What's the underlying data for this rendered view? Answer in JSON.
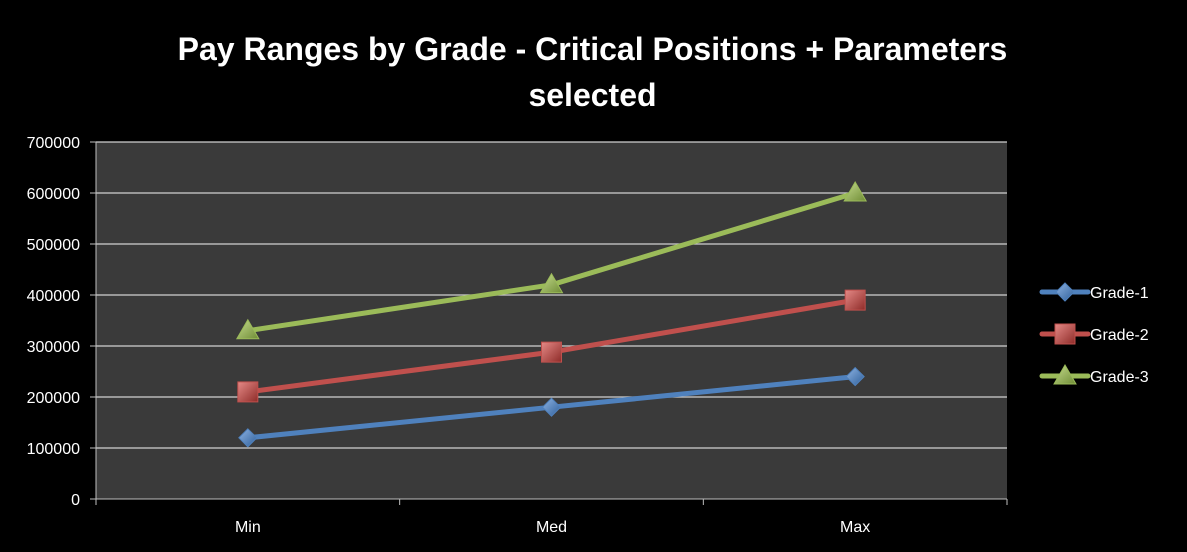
{
  "chart_data": {
    "type": "line",
    "title": "Pay Ranges by Grade - Critical Positions + Parameters selected",
    "xlabel": "",
    "ylabel": "",
    "categories": [
      "Min",
      "Med",
      "Max"
    ],
    "y_ticks": [
      "0",
      "100000",
      "200000",
      "300000",
      "400000",
      "500000",
      "600000",
      "700000"
    ],
    "ylim": [
      0,
      700000
    ],
    "grid": true,
    "legend_position": "right",
    "plot_background": "#3a3a3a",
    "series": [
      {
        "name": "Grade-1",
        "values": [
          120000,
          180000,
          240000
        ],
        "color": "#4f81bd",
        "marker": "diamond"
      },
      {
        "name": "Grade-2",
        "values": [
          210000,
          288000,
          390000
        ],
        "color": "#c0504d",
        "marker": "square"
      },
      {
        "name": "Grade-3",
        "values": [
          330000,
          420000,
          600000
        ],
        "color": "#9bbb59",
        "marker": "triangle"
      }
    ]
  }
}
